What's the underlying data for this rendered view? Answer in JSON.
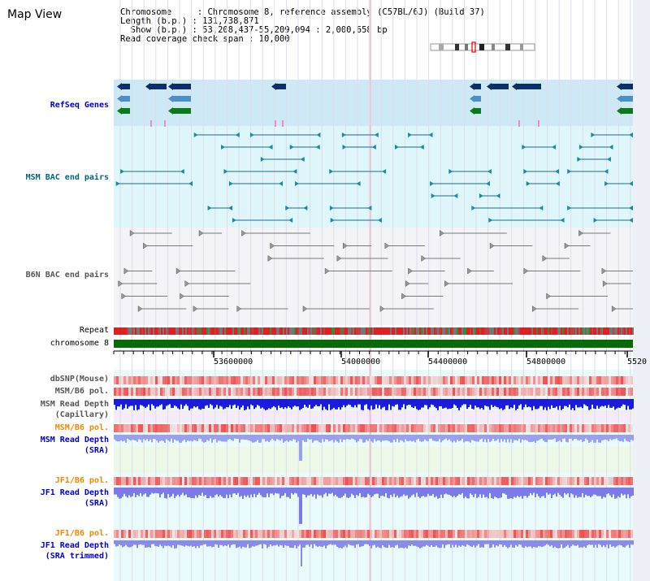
{
  "page": {
    "title": "Map View"
  },
  "header_info": {
    "line1": "Chromosome     : Chromosome 8, reference assembly (C57BL/6J) (Build 37)",
    "line2": "Length (b.p.) : 131,738,871",
    "line3": "  Show (b.p.) : 53,208,437-55,209,094 : 2,000,658 bp",
    "line4": "Read coverage check span : 10,000"
  },
  "tracks": {
    "refseq": {
      "label": "RefSeq Genes",
      "color": "#0000cc"
    },
    "msm_bac": {
      "label": "MSM BAC end pairs",
      "color": "#006677"
    },
    "b6n_bac": {
      "label": "B6N BAC end pairs",
      "color": "#555555"
    },
    "repeat": {
      "label": "Repeat"
    },
    "chromosome": {
      "label": "chromosome 8"
    },
    "dbsnp": {
      "label": "dbSNP(Mouse)",
      "color": "#555555"
    },
    "msm_b6_pol": {
      "label": "MSM/B6 pol.",
      "color": "#555555"
    },
    "msm_depth_cap": {
      "label1": "MSM Read Depth",
      "label2": "(Capillary)",
      "color": "#555555"
    },
    "msm_b6_pol2": {
      "label": "MSM/B6 pol.",
      "color": "#ee8800"
    },
    "msm_depth_sra": {
      "label1": "MSM Read Depth",
      "label2": "(SRA)",
      "color": "#0000cc"
    },
    "jf1_b6_pol": {
      "label": "JF1/B6 pol.",
      "color": "#ee8800"
    },
    "jf1_depth_sra": {
      "label1": "JF1 Read Depth",
      "label2": "(SRA)",
      "color": "#0000cc"
    },
    "jf1_b6_pol2": {
      "label": "JF1/B6 pol.",
      "color": "#ee8800"
    },
    "jf1_depth_trim": {
      "label1": "JF1 Read Depth",
      "label2": "(SRA trimmed)",
      "color": "#0000cc"
    }
  },
  "axis": {
    "ticks": [
      "53600000",
      "54000000",
      "54400000",
      "54800000",
      "5520"
    ]
  }
}
